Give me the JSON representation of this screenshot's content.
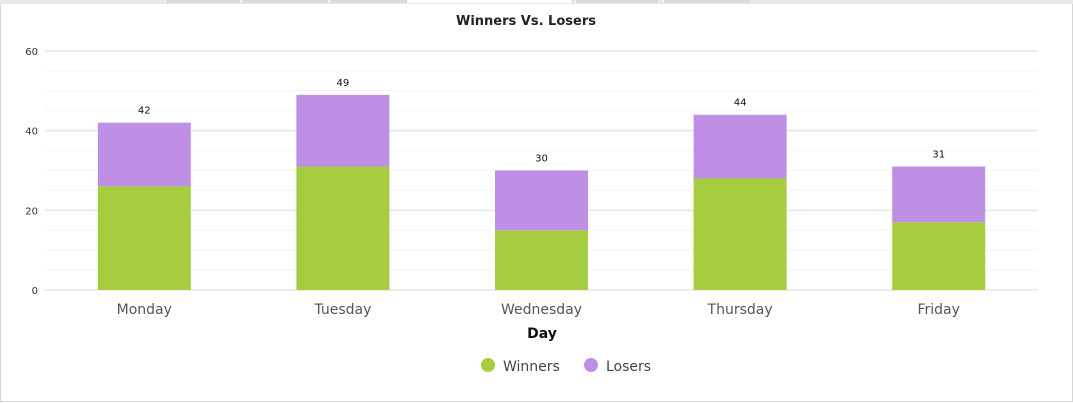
{
  "chart_data": {
    "type": "bar",
    "stacked": true,
    "title": "Winners Vs. Losers",
    "xlabel": "Day",
    "ylabel": "",
    "categories": [
      "Monday",
      "Tuesday",
      "Wednesday",
      "Thursday",
      "Friday"
    ],
    "series": [
      {
        "name": "Winners",
        "values": [
          26,
          31,
          15,
          28,
          17
        ],
        "color": "#a6cc3f"
      },
      {
        "name": "Losers",
        "values": [
          16,
          18,
          15,
          16,
          14
        ],
        "color": "#bf8fe6"
      }
    ],
    "totals": [
      "42",
      "49",
      "30",
      "44",
      "31"
    ],
    "yticks": [
      "0",
      "20",
      "40",
      "60"
    ],
    "ylim": [
      0,
      60
    ],
    "grid": true,
    "legend_position": "bottom-center"
  }
}
